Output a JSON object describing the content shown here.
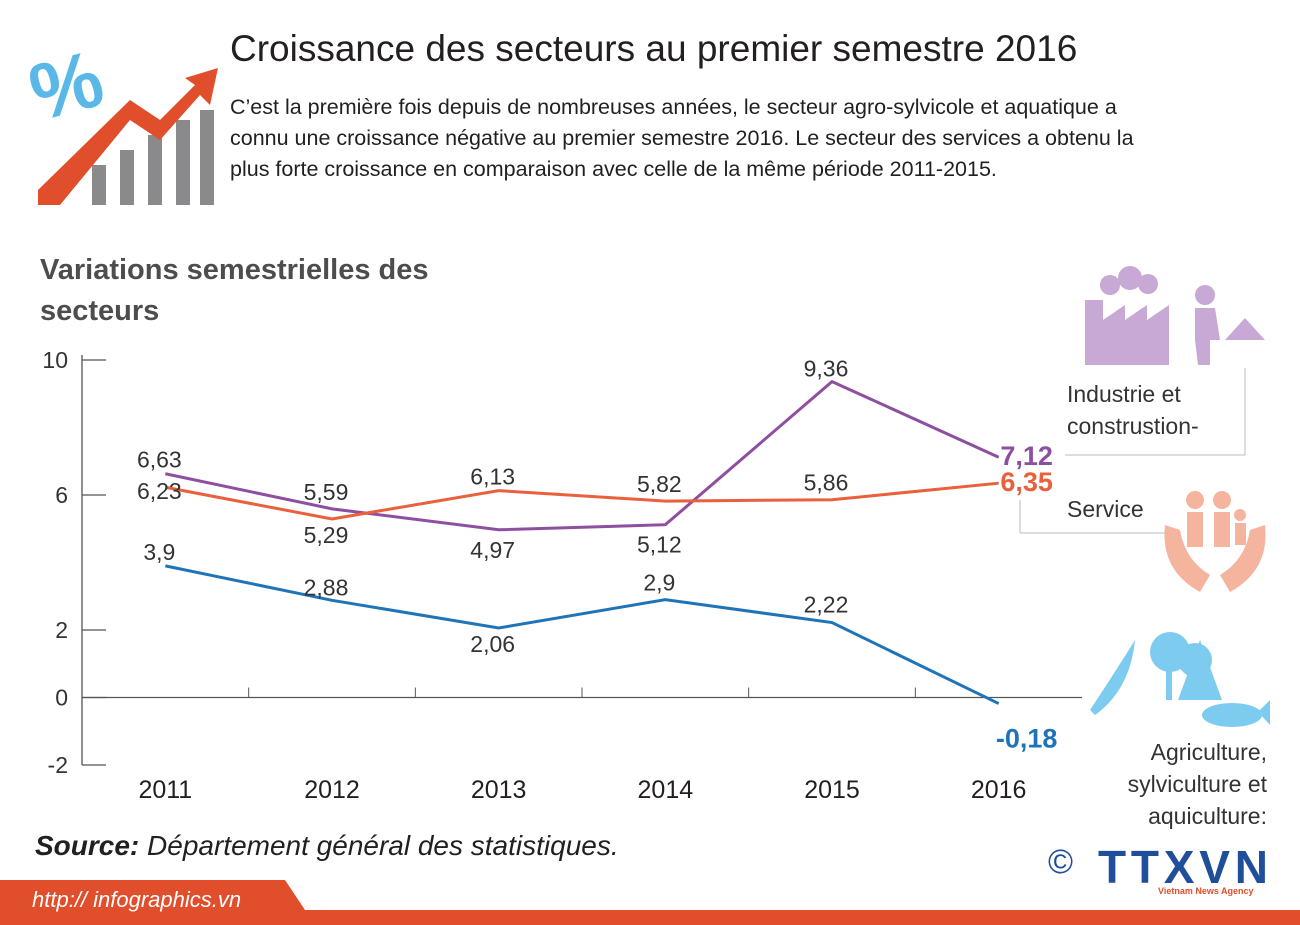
{
  "header": {
    "title": "Croissance des secteurs au premier semestre 2016",
    "description": [
      "C’est la première fois depuis de nombreuses années,  le secteur agro-sylvicole et aquatique a",
      "connu une croissance négative au premier semestre 2016. Le secteur des services a obtenu la",
      "plus forte croissance en comparaison avec celle de la même période 2011-2015."
    ]
  },
  "chart_data": {
    "type": "line",
    "title": "Variations semestrielles des secteurs",
    "categories": [
      "2011",
      "2012",
      "2013",
      "2014",
      "2015",
      "2016"
    ],
    "ylim": [
      -2,
      10
    ],
    "yticks": [
      10,
      6,
      2,
      0,
      -2
    ],
    "series": [
      {
        "name": "Industrie et construstion-",
        "color": "#8e4fa0",
        "values": [
          6.63,
          5.59,
          4.97,
          5.12,
          9.36,
          7.12
        ],
        "value_labels": [
          "6,63",
          "5,59",
          "4,97",
          "5,12",
          "9,36",
          "7,12"
        ]
      },
      {
        "name": "Service",
        "color": "#e8603c",
        "values": [
          6.23,
          5.29,
          6.13,
          5.82,
          5.86,
          6.35
        ],
        "value_labels": [
          "6,23",
          "5,29",
          "6,13",
          "5,82",
          "5,86",
          "6,35"
        ]
      },
      {
        "name": "Agriculture, sylviculture et aquiculture:",
        "color": "#1f74b8",
        "values": [
          3.9,
          2.88,
          2.06,
          2.9,
          2.22,
          -0.18
        ],
        "value_labels": [
          "3,9",
          "2,88",
          "2,06",
          "2,9",
          "2,22",
          "-0,18"
        ]
      }
    ]
  },
  "source": {
    "label": "Source:",
    "text": "Département général des statistiques."
  },
  "footer": {
    "url": "http:// infographics.vn",
    "copyright": "©",
    "logo": "TTXVN",
    "agency": "Vietnam News Agency"
  }
}
